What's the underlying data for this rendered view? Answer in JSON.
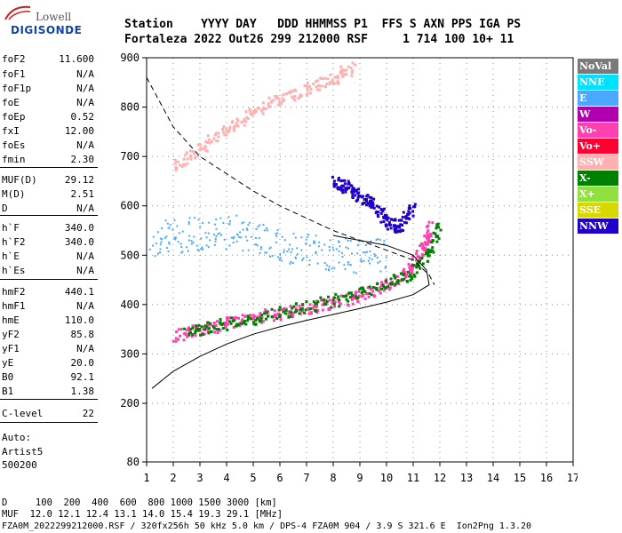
{
  "logo": {
    "top": "Lowell",
    "bottom": "DIGISONDE"
  },
  "header": {
    "line1": "Station    YYYY DAY   DDD HHMMSS P1  FFS S AXN PPS IGA PS",
    "line2": "Fortaleza 2022 Out26 299 212000 RSF     1 714 100 10+ 11"
  },
  "params": [
    {
      "label": "foF2",
      "value": "11.600"
    },
    {
      "label": "foF1",
      "value": "N/A"
    },
    {
      "label": "foF1p",
      "value": "N/A"
    },
    {
      "label": "foE",
      "value": "N/A"
    },
    {
      "label": "foEp",
      "value": "0.52"
    },
    {
      "label": "fxI",
      "value": "12.00"
    },
    {
      "label": "foEs",
      "value": "N/A"
    },
    {
      "label": "fmin",
      "value": "2.30"
    },
    {
      "label": "MUF(D)",
      "value": "29.12"
    },
    {
      "label": "M(D)",
      "value": "2.51"
    },
    {
      "label": "D",
      "value": "N/A"
    },
    {
      "label": "h`F",
      "value": "340.0"
    },
    {
      "label": "h`F2",
      "value": "340.0"
    },
    {
      "label": "h`E",
      "value": "N/A"
    },
    {
      "label": "h`Es",
      "value": "N/A"
    },
    {
      "label": "hmF2",
      "value": "440.1"
    },
    {
      "label": "hmF1",
      "value": "N/A"
    },
    {
      "label": "hmE",
      "value": "110.0"
    },
    {
      "label": "yF2",
      "value": "85.8"
    },
    {
      "label": "yF1",
      "value": "N/A"
    },
    {
      "label": "yE",
      "value": "20.0"
    },
    {
      "label": "B0",
      "value": "92.1"
    },
    {
      "label": "B1",
      "value": "1.38"
    },
    {
      "label": "C-level",
      "value": "22"
    }
  ],
  "auto": {
    "line1": "Auto:",
    "line2": "Artist5",
    "line3": "500200"
  },
  "legend": [
    {
      "label": "NoVal",
      "color": "#7a7a7a",
      "text": "#ffffff"
    },
    {
      "label": "NNE",
      "color": "#00e0ff",
      "text": "#ffffff"
    },
    {
      "label": "E",
      "color": "#4aa8ff",
      "text": "#ffffff"
    },
    {
      "label": "W",
      "color": "#b000b0",
      "text": "#ffffff"
    },
    {
      "label": "Vo-",
      "color": "#ff40b0",
      "text": "#ffffff"
    },
    {
      "label": "Vo+",
      "color": "#ff0030",
      "text": "#ffffff"
    },
    {
      "label": "SSW",
      "color": "#ffb0b0",
      "text": "#ffffff"
    },
    {
      "label": "X-",
      "color": "#008000",
      "text": "#ffffff"
    },
    {
      "label": "X+",
      "color": "#90e040",
      "text": "#ffffff"
    },
    {
      "label": "SSE",
      "color": "#d8d800",
      "text": "#ffffff"
    },
    {
      "label": "NNW",
      "color": "#2000c8",
      "text": "#ffffff"
    }
  ],
  "footer": {
    "line1": "D     100  200  400  600  800 1000 1500 3000 [km]",
    "line2": "MUF  12.0 12.1 12.4 13.1 14.0 15.4 19.3 29.1 [MHz]",
    "line3": "FZA0M_2022299212000.RSF / 320fx256h 50 kHz 5.0 km / DPS-4 FZA0M 904 / 3.9 S 321.6 E  Ion2Png 1.3.20"
  },
  "chart_data": {
    "type": "scatter",
    "title": "",
    "xlabel": "",
    "ylabel": "",
    "xlim": [
      1,
      17
    ],
    "ylim": [
      80,
      900
    ],
    "x_ticks": [
      1,
      2,
      3,
      4,
      5,
      6,
      7,
      8,
      9,
      10,
      11,
      12,
      13,
      14,
      15,
      16,
      17
    ],
    "y_ticks": [
      80,
      200,
      300,
      400,
      500,
      600,
      700,
      800,
      900
    ],
    "grid": true,
    "legend_position": "right",
    "series": [
      {
        "name": "Vo-",
        "points": [
          [
            2,
            340
          ],
          [
            3,
            350
          ],
          [
            4,
            365
          ],
          [
            5,
            375
          ],
          [
            6,
            385
          ],
          [
            7,
            395
          ],
          [
            8,
            405
          ],
          [
            9,
            420
          ],
          [
            10,
            440
          ],
          [
            10.8,
            470
          ],
          [
            11.4,
            520
          ],
          [
            11.6,
            560
          ]
        ]
      },
      {
        "name": "X-",
        "points": [
          [
            2.5,
            348
          ],
          [
            3.5,
            358
          ],
          [
            5,
            372
          ],
          [
            6.5,
            392
          ],
          [
            8,
            410
          ],
          [
            9.5,
            432
          ],
          [
            10.7,
            460
          ],
          [
            11.5,
            500
          ],
          [
            11.9,
            560
          ]
        ]
      },
      {
        "name": "E",
        "points": [
          [
            1.2,
            535
          ],
          [
            2,
            540
          ],
          [
            3,
            545
          ],
          [
            4,
            550
          ],
          [
            5,
            545
          ],
          [
            6,
            520
          ],
          [
            7,
            510
          ],
          [
            8,
            500
          ],
          [
            9,
            500
          ],
          [
            10,
            500
          ]
        ]
      },
      {
        "name": "NNW",
        "points": [
          [
            8,
            650
          ],
          [
            8.5,
            640
          ],
          [
            9,
            620
          ],
          [
            9.5,
            600
          ],
          [
            10,
            570
          ],
          [
            10.5,
            560
          ],
          [
            11,
            600
          ]
        ]
      },
      {
        "name": "SSW",
        "points": [
          [
            2,
            680
          ],
          [
            3,
            720
          ],
          [
            4,
            760
          ],
          [
            5,
            790
          ],
          [
            6,
            820
          ],
          [
            7,
            840
          ],
          [
            8,
            860
          ],
          [
            8.7,
            885
          ]
        ]
      }
    ],
    "curves": [
      {
        "name": "profile",
        "style": "solid",
        "points": [
          [
            1.2,
            230
          ],
          [
            2,
            265
          ],
          [
            3,
            295
          ],
          [
            4,
            320
          ],
          [
            5,
            340
          ],
          [
            6,
            355
          ],
          [
            7,
            368
          ],
          [
            8,
            380
          ],
          [
            9,
            392
          ],
          [
            10,
            405
          ],
          [
            11,
            420
          ],
          [
            11.6,
            440
          ],
          [
            11.5,
            470
          ],
          [
            11,
            500
          ],
          [
            10,
            520
          ],
          [
            9,
            530
          ],
          [
            8,
            540
          ]
        ]
      },
      {
        "name": "fit",
        "style": "dashed",
        "points": [
          [
            1,
            860
          ],
          [
            2,
            760
          ],
          [
            3,
            700
          ],
          [
            4,
            665
          ],
          [
            5,
            630
          ],
          [
            6,
            600
          ],
          [
            7,
            575
          ],
          [
            8,
            550
          ],
          [
            9,
            530
          ],
          [
            10,
            510
          ],
          [
            11,
            490
          ],
          [
            11.6,
            460
          ],
          [
            11.8,
            440
          ]
        ]
      }
    ]
  }
}
